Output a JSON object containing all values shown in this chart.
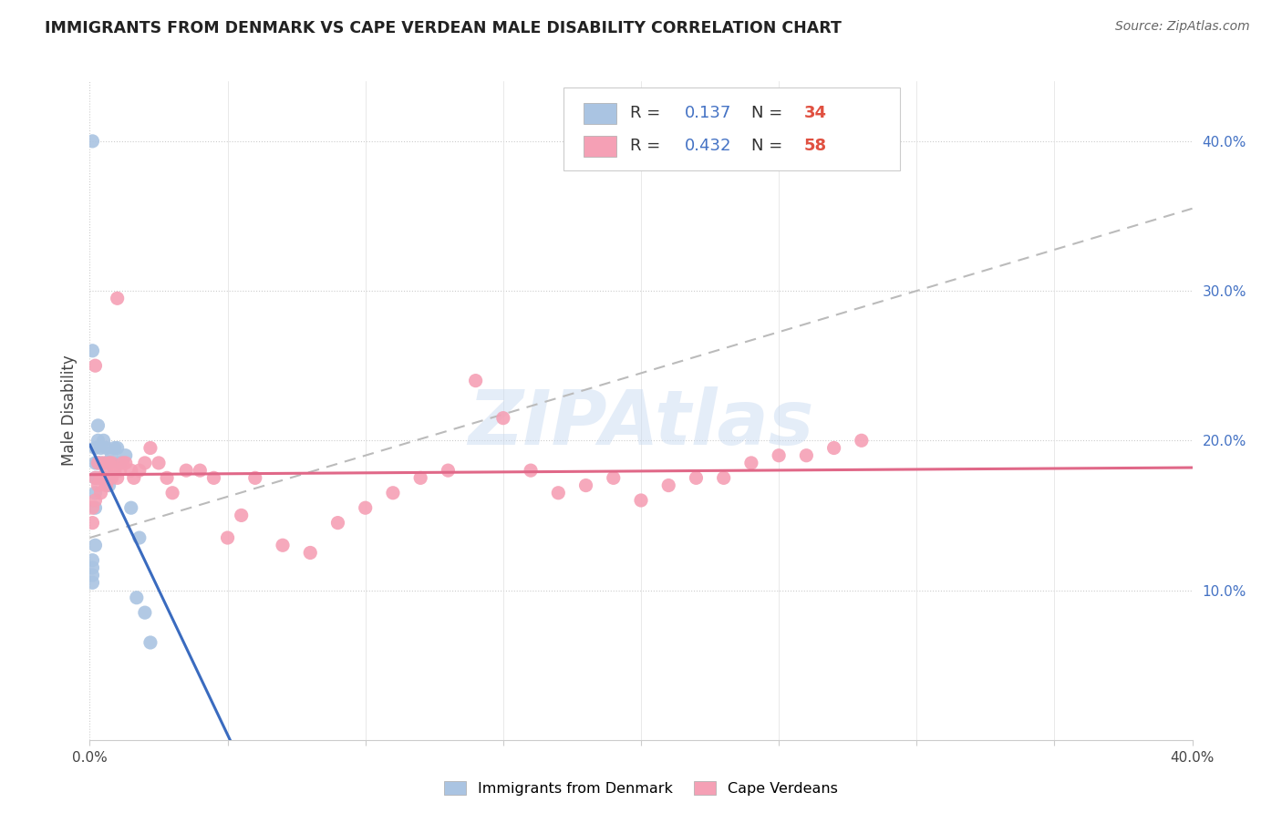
{
  "title": "IMMIGRANTS FROM DENMARK VS CAPE VERDEAN MALE DISABILITY CORRELATION CHART",
  "source": "Source: ZipAtlas.com",
  "ylabel": "Male Disability",
  "xlim": [
    0.0,
    0.4
  ],
  "ylim": [
    0.0,
    0.44
  ],
  "watermark": "ZIPAtlas",
  "denmark_R": 0.137,
  "denmark_N": 34,
  "capeverde_R": 0.432,
  "capeverde_N": 58,
  "denmark_color": "#aac4e2",
  "capeverde_color": "#f5a0b5",
  "denmark_line_color": "#3a6bbf",
  "capeverde_line_color": "#e06888",
  "dashed_line_color": "#bbbbbb",
  "denmark_x": [
    0.001,
    0.001,
    0.001,
    0.001,
    0.001,
    0.002,
    0.002,
    0.002,
    0.002,
    0.002,
    0.003,
    0.003,
    0.003,
    0.003,
    0.004,
    0.004,
    0.005,
    0.005,
    0.006,
    0.006,
    0.007,
    0.007,
    0.008,
    0.009,
    0.01,
    0.011,
    0.013,
    0.015,
    0.017,
    0.018,
    0.02,
    0.022,
    0.001,
    0.002
  ],
  "denmark_y": [
    0.26,
    0.12,
    0.115,
    0.11,
    0.105,
    0.195,
    0.185,
    0.175,
    0.165,
    0.155,
    0.21,
    0.2,
    0.185,
    0.175,
    0.195,
    0.185,
    0.2,
    0.175,
    0.195,
    0.185,
    0.185,
    0.17,
    0.19,
    0.195,
    0.195,
    0.185,
    0.19,
    0.155,
    0.095,
    0.135,
    0.085,
    0.065,
    0.4,
    0.13
  ],
  "capeverde_x": [
    0.001,
    0.001,
    0.002,
    0.002,
    0.003,
    0.003,
    0.004,
    0.004,
    0.005,
    0.005,
    0.006,
    0.006,
    0.007,
    0.008,
    0.008,
    0.009,
    0.01,
    0.011,
    0.012,
    0.013,
    0.015,
    0.016,
    0.018,
    0.02,
    0.022,
    0.025,
    0.028,
    0.03,
    0.035,
    0.04,
    0.045,
    0.05,
    0.055,
    0.06,
    0.07,
    0.08,
    0.09,
    0.1,
    0.11,
    0.12,
    0.13,
    0.14,
    0.15,
    0.16,
    0.17,
    0.18,
    0.19,
    0.2,
    0.21,
    0.22,
    0.23,
    0.24,
    0.25,
    0.26,
    0.27,
    0.28,
    0.002,
    0.01
  ],
  "capeverde_y": [
    0.155,
    0.145,
    0.175,
    0.16,
    0.185,
    0.17,
    0.175,
    0.165,
    0.185,
    0.175,
    0.18,
    0.17,
    0.185,
    0.185,
    0.175,
    0.18,
    0.175,
    0.18,
    0.185,
    0.185,
    0.18,
    0.175,
    0.18,
    0.185,
    0.195,
    0.185,
    0.175,
    0.165,
    0.18,
    0.18,
    0.175,
    0.135,
    0.15,
    0.175,
    0.13,
    0.125,
    0.145,
    0.155,
    0.165,
    0.175,
    0.18,
    0.24,
    0.215,
    0.18,
    0.165,
    0.17,
    0.175,
    0.16,
    0.17,
    0.175,
    0.175,
    0.185,
    0.19,
    0.19,
    0.195,
    0.2,
    0.25,
    0.295
  ],
  "ytick_vals": [
    0.1,
    0.2,
    0.3,
    0.4
  ],
  "ytick_labels": [
    "10.0%",
    "20.0%",
    "30.0%",
    "40.0%"
  ],
  "xtick_left_label": "0.0%",
  "xtick_right_label": "40.0%"
}
